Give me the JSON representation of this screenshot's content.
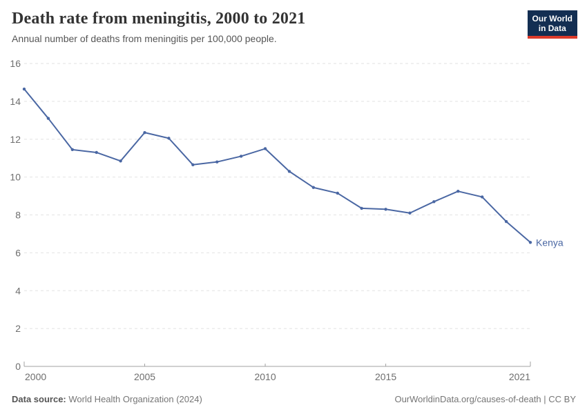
{
  "header": {
    "title": "Death rate from meningitis, 2000 to 2021",
    "subtitle": "Annual number of deaths from meningitis per 100,000 people.",
    "logo": {
      "line1": "Our World",
      "line2": "in Data",
      "bg_color": "#132e52",
      "accent_color": "#dd3b2a"
    }
  },
  "chart_data": {
    "type": "line",
    "title": "Death rate from meningitis, 2000 to 2021",
    "subtitle": "Annual number of deaths from meningitis per 100,000 people.",
    "xlabel": "",
    "ylabel": "",
    "series": [
      {
        "name": "Kenya",
        "x": [
          2000,
          2001,
          2002,
          2003,
          2004,
          2005,
          2006,
          2007,
          2008,
          2009,
          2010,
          2011,
          2012,
          2013,
          2014,
          2015,
          2016,
          2017,
          2018,
          2019,
          2020,
          2021
        ],
        "values": [
          14.65,
          13.1,
          11.45,
          11.3,
          10.85,
          12.35,
          12.05,
          10.65,
          10.8,
          11.1,
          11.5,
          10.3,
          9.45,
          9.15,
          8.35,
          8.3,
          8.1,
          8.7,
          9.25,
          8.95,
          7.65,
          6.55
        ]
      }
    ],
    "xlim": [
      2000,
      2021
    ],
    "ylim": [
      0,
      16
    ],
    "yticks": [
      0,
      2,
      4,
      6,
      8,
      10,
      12,
      14,
      16
    ],
    "xticks": [
      2000,
      2005,
      2010,
      2015,
      2021
    ],
    "grid": "horizontal-dashed",
    "legend": "series-end-label",
    "colors": {
      "line": "#4a67a3",
      "grid": "#e2e2e2",
      "axis": "#a1a1a1",
      "tick_label": "#6e6e6e"
    }
  },
  "footer": {
    "source_label": "Data source:",
    "source_value": " World Health Organization (2024)",
    "link": "OurWorldinData.org/causes-of-death | CC BY"
  }
}
